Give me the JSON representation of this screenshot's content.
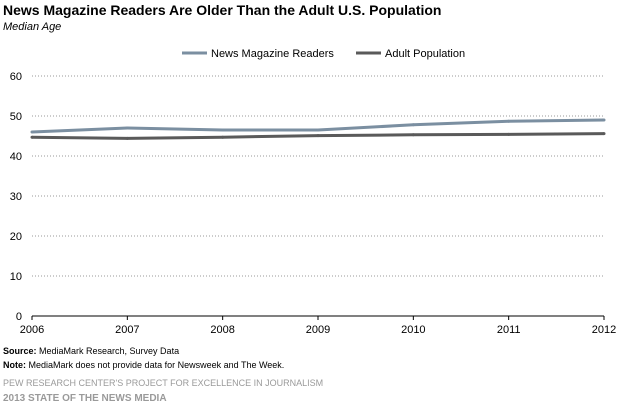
{
  "chart_data": {
    "type": "line",
    "title": "News Magazine Readers  Are Older Than the Adult U.S. Population",
    "subtitle": "Median Age",
    "x": [
      "2006",
      "2007",
      "2008",
      "2009",
      "2010",
      "2011",
      "2012"
    ],
    "yticks": [
      "0",
      "10",
      "20",
      "30",
      "40",
      "50",
      "60"
    ],
    "ylim": [
      0,
      60
    ],
    "grid": true,
    "legend_position": "top-center",
    "series": [
      {
        "name": "News Magazine Readers",
        "color": "#7b8fa1",
        "values": [
          46.0,
          47.0,
          46.5,
          46.5,
          47.8,
          48.7,
          49.0
        ]
      },
      {
        "name": "Adult Population",
        "color": "#5a5a5a",
        "values": [
          44.7,
          44.4,
          44.7,
          45.1,
          45.3,
          45.4,
          45.6
        ]
      }
    ]
  },
  "footer": {
    "source_label": "Source:",
    "source_text": " MediaMark Research, Survey Data",
    "note_label": "Note:",
    "note_text": " MediaMark does not provide data for Newsweek and The  Week.",
    "org": "PEW RESEARCH CENTER'S PROJECT FOR EXCELLENCE IN JOURNALISM",
    "report": "2013 STATE OF THE NEWS MEDIA"
  }
}
